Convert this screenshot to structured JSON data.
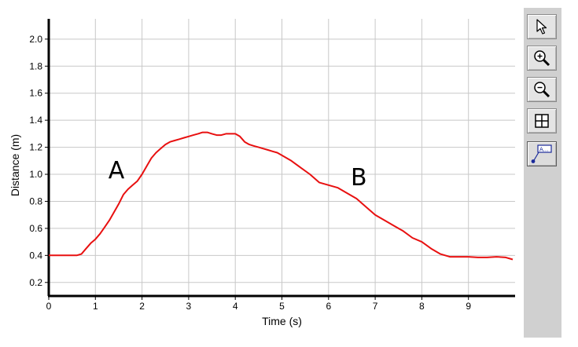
{
  "chart_data": {
    "type": "line",
    "title": "",
    "xlabel": "Time (s)",
    "ylabel": "Distance (m)",
    "xlim": [
      0,
      10
    ],
    "ylim": [
      0.1,
      2.15
    ],
    "xticks": [
      0,
      1,
      2,
      3,
      4,
      5,
      6,
      7,
      8,
      9
    ],
    "xtick_labels": [
      "0",
      "1",
      "2",
      "3",
      "4",
      "5",
      "6",
      "7",
      "8",
      "9"
    ],
    "yticks": [
      0.2,
      0.4,
      0.6,
      0.8,
      1.0,
      1.2,
      1.4,
      1.6,
      1.8,
      2.0
    ],
    "ytick_labels": [
      "0.2",
      "0.4",
      "0.6",
      "0.8",
      "1.0",
      "1.2",
      "1.4",
      "1.6",
      "1.8",
      "2.0"
    ],
    "grid": true,
    "line_color": "#e81010",
    "series": [
      {
        "x": [
          0,
          0.3,
          0.6,
          0.7,
          0.8,
          0.9,
          1.0,
          1.1,
          1.2,
          1.3,
          1.4,
          1.5,
          1.6,
          1.7,
          1.8,
          1.9,
          2.0,
          2.1,
          2.2,
          2.3,
          2.4,
          2.5,
          2.6,
          2.7,
          2.8,
          2.9,
          3.0,
          3.1,
          3.2,
          3.3,
          3.4,
          3.5,
          3.6,
          3.7,
          3.8,
          3.9,
          4.0,
          4.1,
          4.2,
          4.3,
          4.4,
          4.5,
          4.6,
          4.7,
          4.8,
          4.9,
          5.0,
          5.2,
          5.4,
          5.6,
          5.8,
          6.0,
          6.2,
          6.4,
          6.6,
          6.8,
          7.0,
          7.2,
          7.4,
          7.6,
          7.8,
          8.0,
          8.2,
          8.4,
          8.6,
          8.8,
          9.0,
          9.2,
          9.4,
          9.6,
          9.8,
          9.95
        ],
        "y": [
          0.4,
          0.4,
          0.4,
          0.41,
          0.45,
          0.49,
          0.52,
          0.56,
          0.61,
          0.66,
          0.72,
          0.78,
          0.85,
          0.89,
          0.92,
          0.95,
          1.0,
          1.06,
          1.12,
          1.16,
          1.19,
          1.22,
          1.24,
          1.25,
          1.26,
          1.27,
          1.28,
          1.29,
          1.3,
          1.31,
          1.31,
          1.3,
          1.29,
          1.29,
          1.3,
          1.3,
          1.3,
          1.28,
          1.24,
          1.22,
          1.21,
          1.2,
          1.19,
          1.18,
          1.17,
          1.16,
          1.14,
          1.1,
          1.05,
          1.0,
          0.94,
          0.92,
          0.9,
          0.86,
          0.82,
          0.76,
          0.7,
          0.66,
          0.62,
          0.58,
          0.53,
          0.5,
          0.45,
          0.41,
          0.39,
          0.39,
          0.39,
          0.385,
          0.385,
          0.39,
          0.385,
          0.37
        ]
      }
    ],
    "annotations": [
      {
        "text": "A",
        "x": 1.45,
        "y": 0.97
      },
      {
        "text": "B",
        "x": 6.65,
        "y": 0.92
      }
    ]
  },
  "toolbar": {
    "buttons": [
      {
        "name": "select-pointer-button",
        "icon": "arrow-pointer-icon"
      },
      {
        "name": "zoom-in-button",
        "icon": "zoom-in-icon"
      },
      {
        "name": "zoom-out-button",
        "icon": "zoom-out-icon"
      },
      {
        "name": "grid-toggle-button",
        "icon": "grid-icon"
      },
      {
        "name": "annotation-button",
        "icon": "annotation-icon"
      }
    ]
  }
}
